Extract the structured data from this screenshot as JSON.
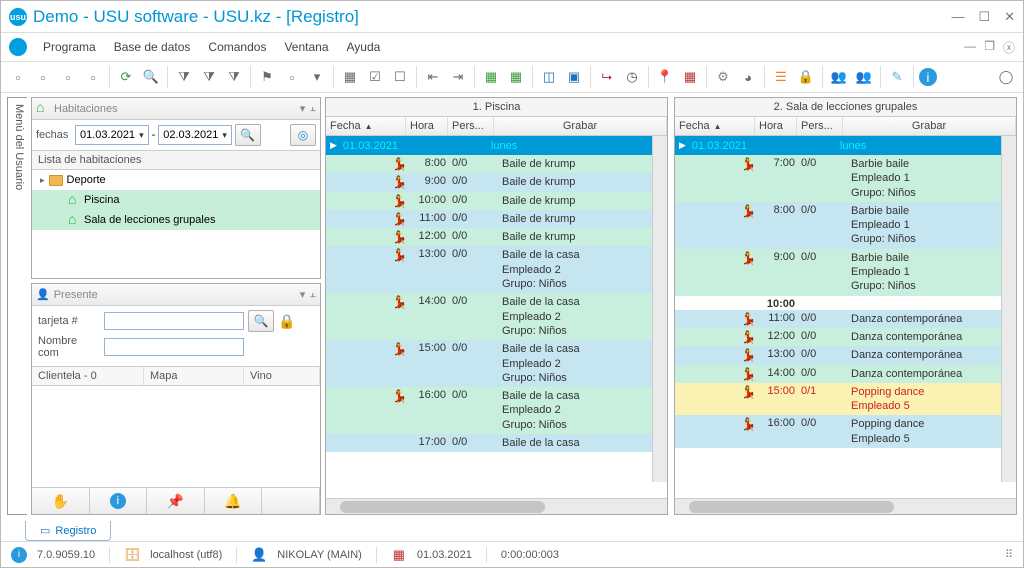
{
  "window": {
    "title": "Demo - USU software - USU.kz - [Registro]",
    "logo_text": "usu"
  },
  "menu": {
    "items": [
      "Programa",
      "Base de datos",
      "Comandos",
      "Ventana",
      "Ayuda"
    ]
  },
  "side_tab": "Menú del Usuario",
  "rooms_panel": {
    "title": "Habitaciones",
    "date_label": "fechas",
    "date_from": "01.03.2021",
    "date_to": "02.03.2021",
    "list_header": "Lista de habitaciones",
    "tree": {
      "root": "Deporte",
      "items": [
        "Piscina",
        "Sala de lecciones grupales"
      ]
    }
  },
  "present_panel": {
    "title": "Presente",
    "card_label": "tarjeta #",
    "name_label": "Nombre com",
    "grid_cols": [
      "Clientela - 0",
      "Mapa",
      "Vino"
    ]
  },
  "sched1": {
    "title": "1. Piscina",
    "cols": {
      "fecha": "Fecha",
      "hora": "Hora",
      "pers": "Pers...",
      "grabar": "Grabar"
    },
    "day": {
      "date": "01.03.2021",
      "dow": "lunes"
    },
    "rows": [
      {
        "bg": "green",
        "ico": "blue",
        "hora": "8:00",
        "pers": "0/0",
        "txt": [
          "Baile de krump"
        ]
      },
      {
        "bg": "blue",
        "ico": "blue",
        "hora": "9:00",
        "pers": "0/0",
        "txt": [
          "Baile de krump"
        ]
      },
      {
        "bg": "green",
        "ico": "blue",
        "hora": "10:00",
        "pers": "0/0",
        "txt": [
          "Baile de krump"
        ]
      },
      {
        "bg": "blue",
        "ico": "blue",
        "hora": "11:00",
        "pers": "0/0",
        "txt": [
          "Baile de krump"
        ]
      },
      {
        "bg": "green",
        "ico": "blue",
        "hora": "12:00",
        "pers": "0/0",
        "txt": [
          "Baile de krump"
        ]
      },
      {
        "bg": "blue",
        "ico": "red",
        "hora": "13:00",
        "pers": "0/0",
        "txt": [
          "Baile de la casa",
          "Empleado 2",
          "Grupo: Niños"
        ]
      },
      {
        "bg": "green",
        "ico": "red",
        "hora": "14:00",
        "pers": "0/0",
        "txt": [
          "Baile de la casa",
          "Empleado 2",
          "Grupo: Niños"
        ]
      },
      {
        "bg": "blue",
        "ico": "red",
        "hora": "15:00",
        "pers": "0/0",
        "txt": [
          "Baile de la casa",
          "Empleado 2",
          "Grupo: Niños"
        ]
      },
      {
        "bg": "green",
        "ico": "red",
        "hora": "16:00",
        "pers": "0/0",
        "txt": [
          "Baile de la casa",
          "Empleado 2",
          "Grupo: Niños"
        ]
      },
      {
        "bg": "blue",
        "ico": "",
        "hora": "17:00",
        "pers": "0/0",
        "txt": [
          "Baile de la casa"
        ]
      }
    ]
  },
  "sched2": {
    "title": "2. Sala de lecciones grupales",
    "cols": {
      "fecha": "Fecha",
      "hora": "Hora",
      "pers": "Pers...",
      "grabar": "Grabar"
    },
    "day": {
      "date": "01.03.2021",
      "dow": "lunes"
    },
    "rows": [
      {
        "bg": "green",
        "ico": "red",
        "hora": "7:00",
        "pers": "0/0",
        "txt": [
          "Barbie baile",
          "Empleado 1",
          "Grupo: Niños"
        ]
      },
      {
        "bg": "blue",
        "ico": "red",
        "hora": "8:00",
        "pers": "0/0",
        "txt": [
          "Barbie baile",
          "Empleado 1",
          "Grupo: Niños"
        ]
      },
      {
        "bg": "green",
        "ico": "red",
        "hora": "9:00",
        "pers": "0/0",
        "txt": [
          "Barbie baile",
          "Empleado 1",
          "Grupo: Niños"
        ]
      },
      {
        "bg": "white",
        "ico": "",
        "hora": "10:00",
        "pers": "",
        "txt": [],
        "bold": true
      },
      {
        "bg": "blue",
        "ico": "red",
        "hora": "11:00",
        "pers": "0/0",
        "txt": [
          "Danza contemporánea"
        ]
      },
      {
        "bg": "green",
        "ico": "red",
        "hora": "12:00",
        "pers": "0/0",
        "txt": [
          "Danza contemporánea"
        ]
      },
      {
        "bg": "blue",
        "ico": "red",
        "hora": "13:00",
        "pers": "0/0",
        "txt": [
          "Danza contemporánea"
        ]
      },
      {
        "bg": "green",
        "ico": "red",
        "hora": "14:00",
        "pers": "0/0",
        "txt": [
          "Danza contemporánea"
        ]
      },
      {
        "bg": "yellow",
        "ico": "teal",
        "hora": "15:00",
        "pers": "0/1",
        "txt": [
          "Popping dance",
          "Empleado 5"
        ],
        "red": true
      },
      {
        "bg": "blue",
        "ico": "teal",
        "hora": "16:00",
        "pers": "0/0",
        "txt": [
          "Popping dance",
          "Empleado 5"
        ]
      }
    ]
  },
  "tab": "Registro",
  "status": {
    "version": "7.0.9059.10",
    "host": "localhost (utf8)",
    "user": "NIKOLAY (MAIN)",
    "date": "01.03.2021",
    "time": "0:00:00:003"
  },
  "colors": {
    "accent": "#0099d8",
    "row_green": "#c8efdd",
    "row_blue": "#c5e5f0",
    "row_yellow": "#f9f2b3"
  }
}
